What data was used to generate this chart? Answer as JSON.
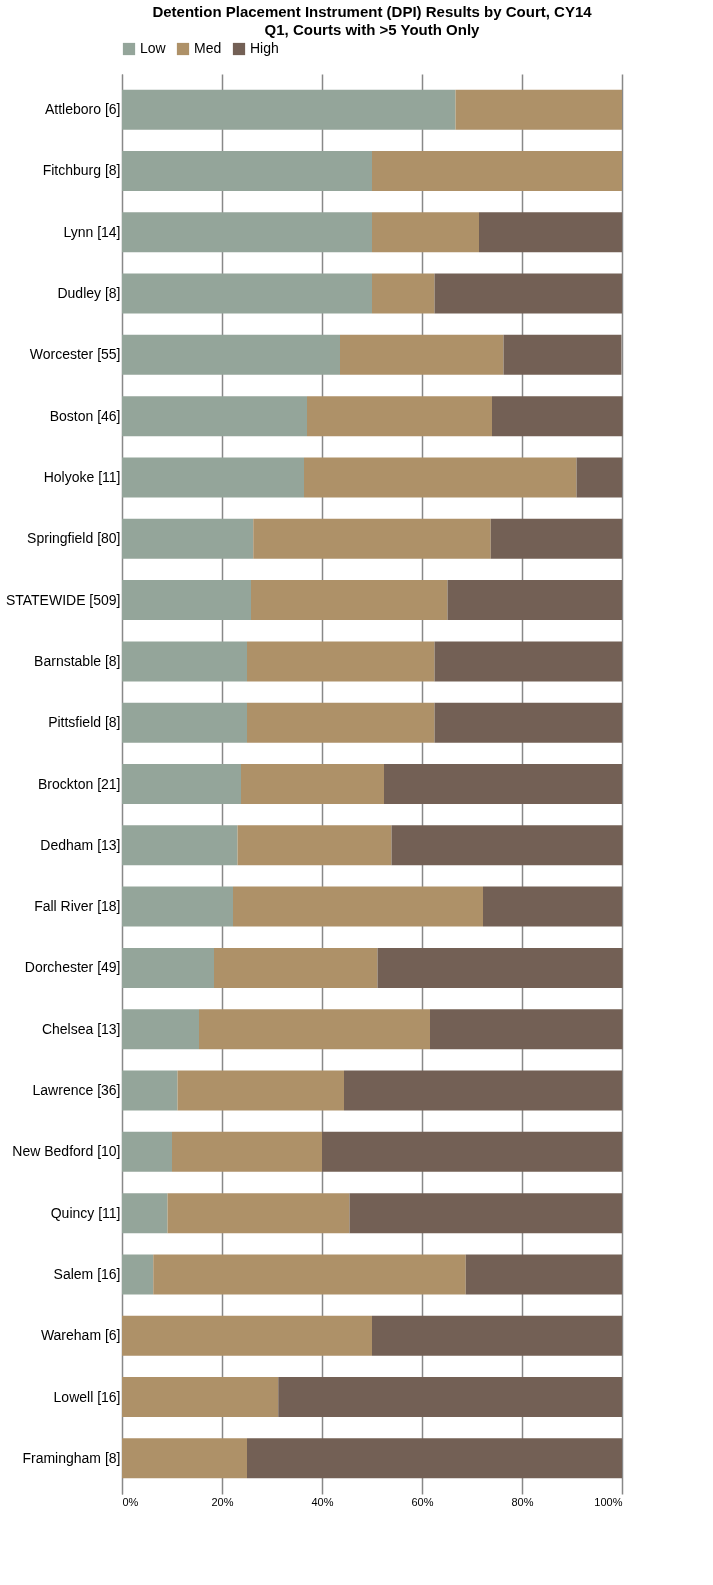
{
  "chart_data": {
    "type": "bar",
    "orientation": "horizontal",
    "stacked": true,
    "title": "Detention Placement Instrument (DPI) Results by Court, CY14",
    "subtitle": "Q1, Courts with >5 Youth Only",
    "categories": [
      "Attleboro [6]",
      "Fitchburg [8]",
      "Lynn [14]",
      "Dudley [8]",
      "Worcester [55]",
      "Boston [46]",
      "Holyoke [11]",
      "Springfield [80]",
      "STATEWIDE [509]",
      "Barnstable [8]",
      "Pittsfield [8]",
      "Brockton [21]",
      "Dedham [13]",
      "Fall River [18]",
      "Dorchester [49]",
      "Chelsea [13]",
      "Lawrence [36]",
      "New Bedford [10]",
      "Quincy [11]",
      "Salem [16]",
      "Wareham [6]",
      "Lowell [16]",
      "Framingham [8]"
    ],
    "series": [
      {
        "name": "Low",
        "color": "#94a59a",
        "values": [
          66.7,
          50,
          50,
          50,
          43.6,
          37.0,
          36.4,
          26.25,
          25.8,
          25,
          25,
          23.8,
          23.1,
          22.2,
          18.4,
          15.4,
          11.1,
          10,
          9.1,
          6.25,
          0,
          0,
          0
        ]
      },
      {
        "name": "Med",
        "color": "#ae9168",
        "values": [
          33.3,
          50,
          21.4,
          12.5,
          32.7,
          37.0,
          54.5,
          47.5,
          39.3,
          37.5,
          37.5,
          28.6,
          30.8,
          50.0,
          32.7,
          46.2,
          33.3,
          30,
          36.4,
          62.5,
          50,
          31.25,
          25
        ]
      },
      {
        "name": "High",
        "color": "#736055",
        "values": [
          0,
          0,
          28.6,
          37.5,
          23.6,
          26.1,
          9.1,
          26.25,
          34.9,
          37.5,
          37.5,
          47.6,
          46.2,
          27.8,
          49.0,
          38.5,
          55.6,
          60,
          54.5,
          31.25,
          50,
          68.75,
          75
        ]
      }
    ],
    "xlim": [
      0,
      100
    ],
    "xticks": [
      {
        "value": 0,
        "label": "0%"
      },
      {
        "value": 20,
        "label": "20%"
      },
      {
        "value": 40,
        "label": "40%"
      },
      {
        "value": 60,
        "label": "60%"
      },
      {
        "value": 80,
        "label": "80%"
      },
      {
        "value": 100,
        "label": "100%"
      }
    ],
    "grid": "x",
    "legend": "top"
  }
}
